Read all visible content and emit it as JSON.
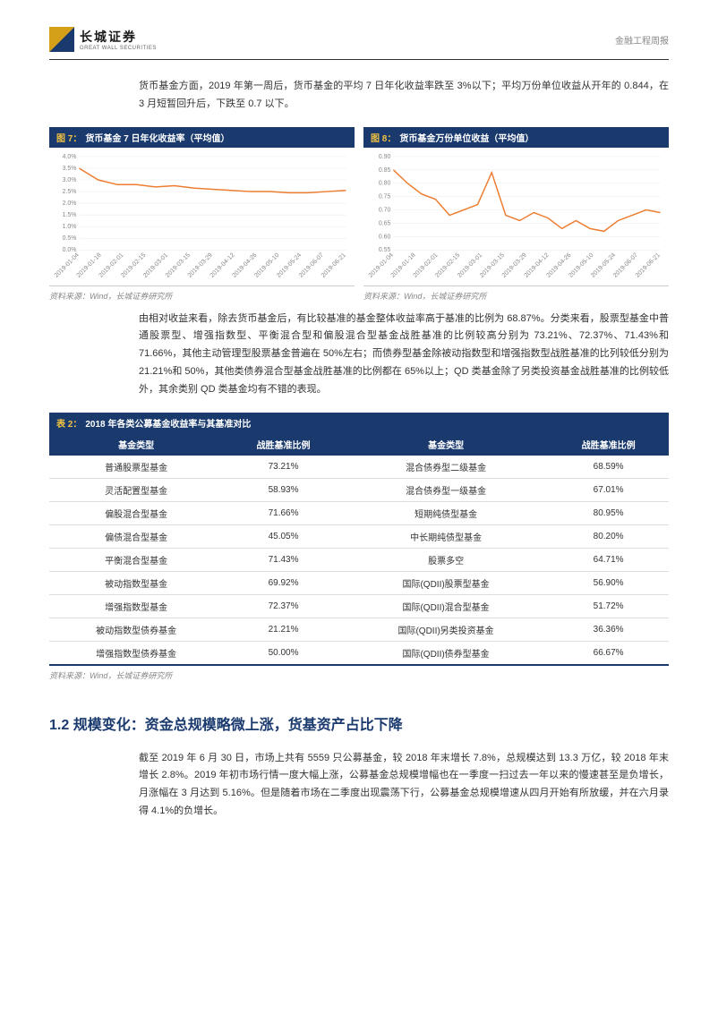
{
  "header": {
    "logo_cn": "长城证券",
    "logo_en": "GREAT WALL SECURITIES",
    "report_type": "金融工程周报"
  },
  "para1": "货币基金方面，2019 年第一周后，货币基金的平均 7 日年化收益率跌至 3%以下；平均万份单位收益从开年的 0.844，在 3 月短暂回升后，下跌至 0.7 以下。",
  "chart7": {
    "label": "图 7：",
    "title": "货币基金 7 日年化收益率（平均值）",
    "source": "资料来源：Wind，长城证券研究所",
    "line_color": "#ed7d31",
    "grid_color": "#e8e8e8",
    "bg_color": "#ffffff",
    "ylim": [
      0,
      4.0
    ],
    "ytick_step": 0.5,
    "ylabels": [
      "0.0%",
      "0.5%",
      "1.0%",
      "1.5%",
      "2.0%",
      "2.5%",
      "3.0%",
      "3.5%",
      "4.0%"
    ],
    "xlabels": [
      "2019-01-04",
      "2019-01-18",
      "2019-02-01",
      "2019-02-15",
      "2019-03-01",
      "2019-03-15",
      "2019-03-29",
      "2019-04-12",
      "2019-04-26",
      "2019-05-10",
      "2019-05-24",
      "2019-06-07",
      "2019-06-21"
    ],
    "values": [
      3.5,
      3.0,
      2.8,
      2.8,
      2.7,
      2.75,
      2.65,
      2.6,
      2.55,
      2.5,
      2.5,
      2.45,
      2.45,
      2.5,
      2.55
    ]
  },
  "chart8": {
    "label": "图 8：",
    "title": "货币基金万份单位收益（平均值）",
    "source": "资料来源：Wind，长城证券研究所",
    "line_color": "#ed7d31",
    "grid_color": "#e8e8e8",
    "bg_color": "#ffffff",
    "ylim": [
      0.55,
      0.9
    ],
    "ytick_step": 0.05,
    "ylabels": [
      "0.55",
      "0.60",
      "0.65",
      "0.70",
      "0.75",
      "0.80",
      "0.85",
      "0.90"
    ],
    "xlabels": [
      "2019-01-04",
      "2019-01-18",
      "2019-02-01",
      "2019-02-15",
      "2019-03-01",
      "2019-03-15",
      "2019-03-29",
      "2019-04-12",
      "2019-04-26",
      "2019-05-10",
      "2019-05-24",
      "2019-06-07",
      "2019-06-21"
    ],
    "values": [
      0.85,
      0.8,
      0.76,
      0.74,
      0.68,
      0.7,
      0.72,
      0.84,
      0.68,
      0.66,
      0.69,
      0.67,
      0.63,
      0.66,
      0.63,
      0.62,
      0.66,
      0.68,
      0.7,
      0.69
    ]
  },
  "para2": "由相对收益来看，除去货币基金后，有比较基准的基金整体收益率高于基准的比例为 68.87%。分类来看，股票型基金中普通股票型、增强指数型、平衡混合型和偏股混合型基金战胜基准的比例较高分别为 73.21%、72.37%、71.43%和 71.66%，其他主动管理型股票基金普遍在 50%左右；而债券型基金除被动指数型和增强指数型战胜基准的比列较低分别为 21.21%和 50%，其他类债券混合型基金战胜基准的比例都在 65%以上；QD 类基金除了另类投资基金战胜基准的比例较低外，其余类别 QD 类基金均有不错的表现。",
  "table2": {
    "label": "表 2：",
    "title": "2018 年各类公募基金收益率与其基准对比",
    "source": "资料来源：Wind，长城证券研究所",
    "columns": [
      "基金类型",
      "战胜基准比例",
      "基金类型",
      "战胜基准比例"
    ],
    "rows": [
      [
        "普通股票型基金",
        "73.21%",
        "混合债券型二级基金",
        "68.59%"
      ],
      [
        "灵活配置型基金",
        "58.93%",
        "混合债券型一级基金",
        "67.01%"
      ],
      [
        "偏股混合型基金",
        "71.66%",
        "短期纯债型基金",
        "80.95%"
      ],
      [
        "偏债混合型基金",
        "45.05%",
        "中长期纯债型基金",
        "80.20%"
      ],
      [
        "平衡混合型基金",
        "71.43%",
        "股票多空",
        "64.71%"
      ],
      [
        "被动指数型基金",
        "69.92%",
        "国际(QDII)股票型基金",
        "56.90%"
      ],
      [
        "增强指数型基金",
        "72.37%",
        "国际(QDII)混合型基金",
        "51.72%"
      ],
      [
        "被动指数型债券基金",
        "21.21%",
        "国际(QDII)另类投资基金",
        "36.36%"
      ],
      [
        "增强指数型债券基金",
        "50.00%",
        "国际(QDII)债券型基金",
        "66.67%"
      ]
    ]
  },
  "section12": {
    "title": "1.2  规模变化：资金总规模略微上涨，货基资产占比下降"
  },
  "para3": "截至 2019 年 6 月 30 日，市场上共有 5559 只公募基金，较 2018 年末增长 7.8%，总规模达到 13.3 万亿，较 2018 年末增长 2.8%。2019 年初市场行情一度大幅上涨，公募基金总规模增幅也在一季度一扫过去一年以来的慢速甚至是负增长，月涨幅在 3 月达到 5.16%。但是随着市场在二季度出现震荡下行，公募基金总规模增速从四月开始有所放缓，并在六月录得 4.1%的负增长。"
}
